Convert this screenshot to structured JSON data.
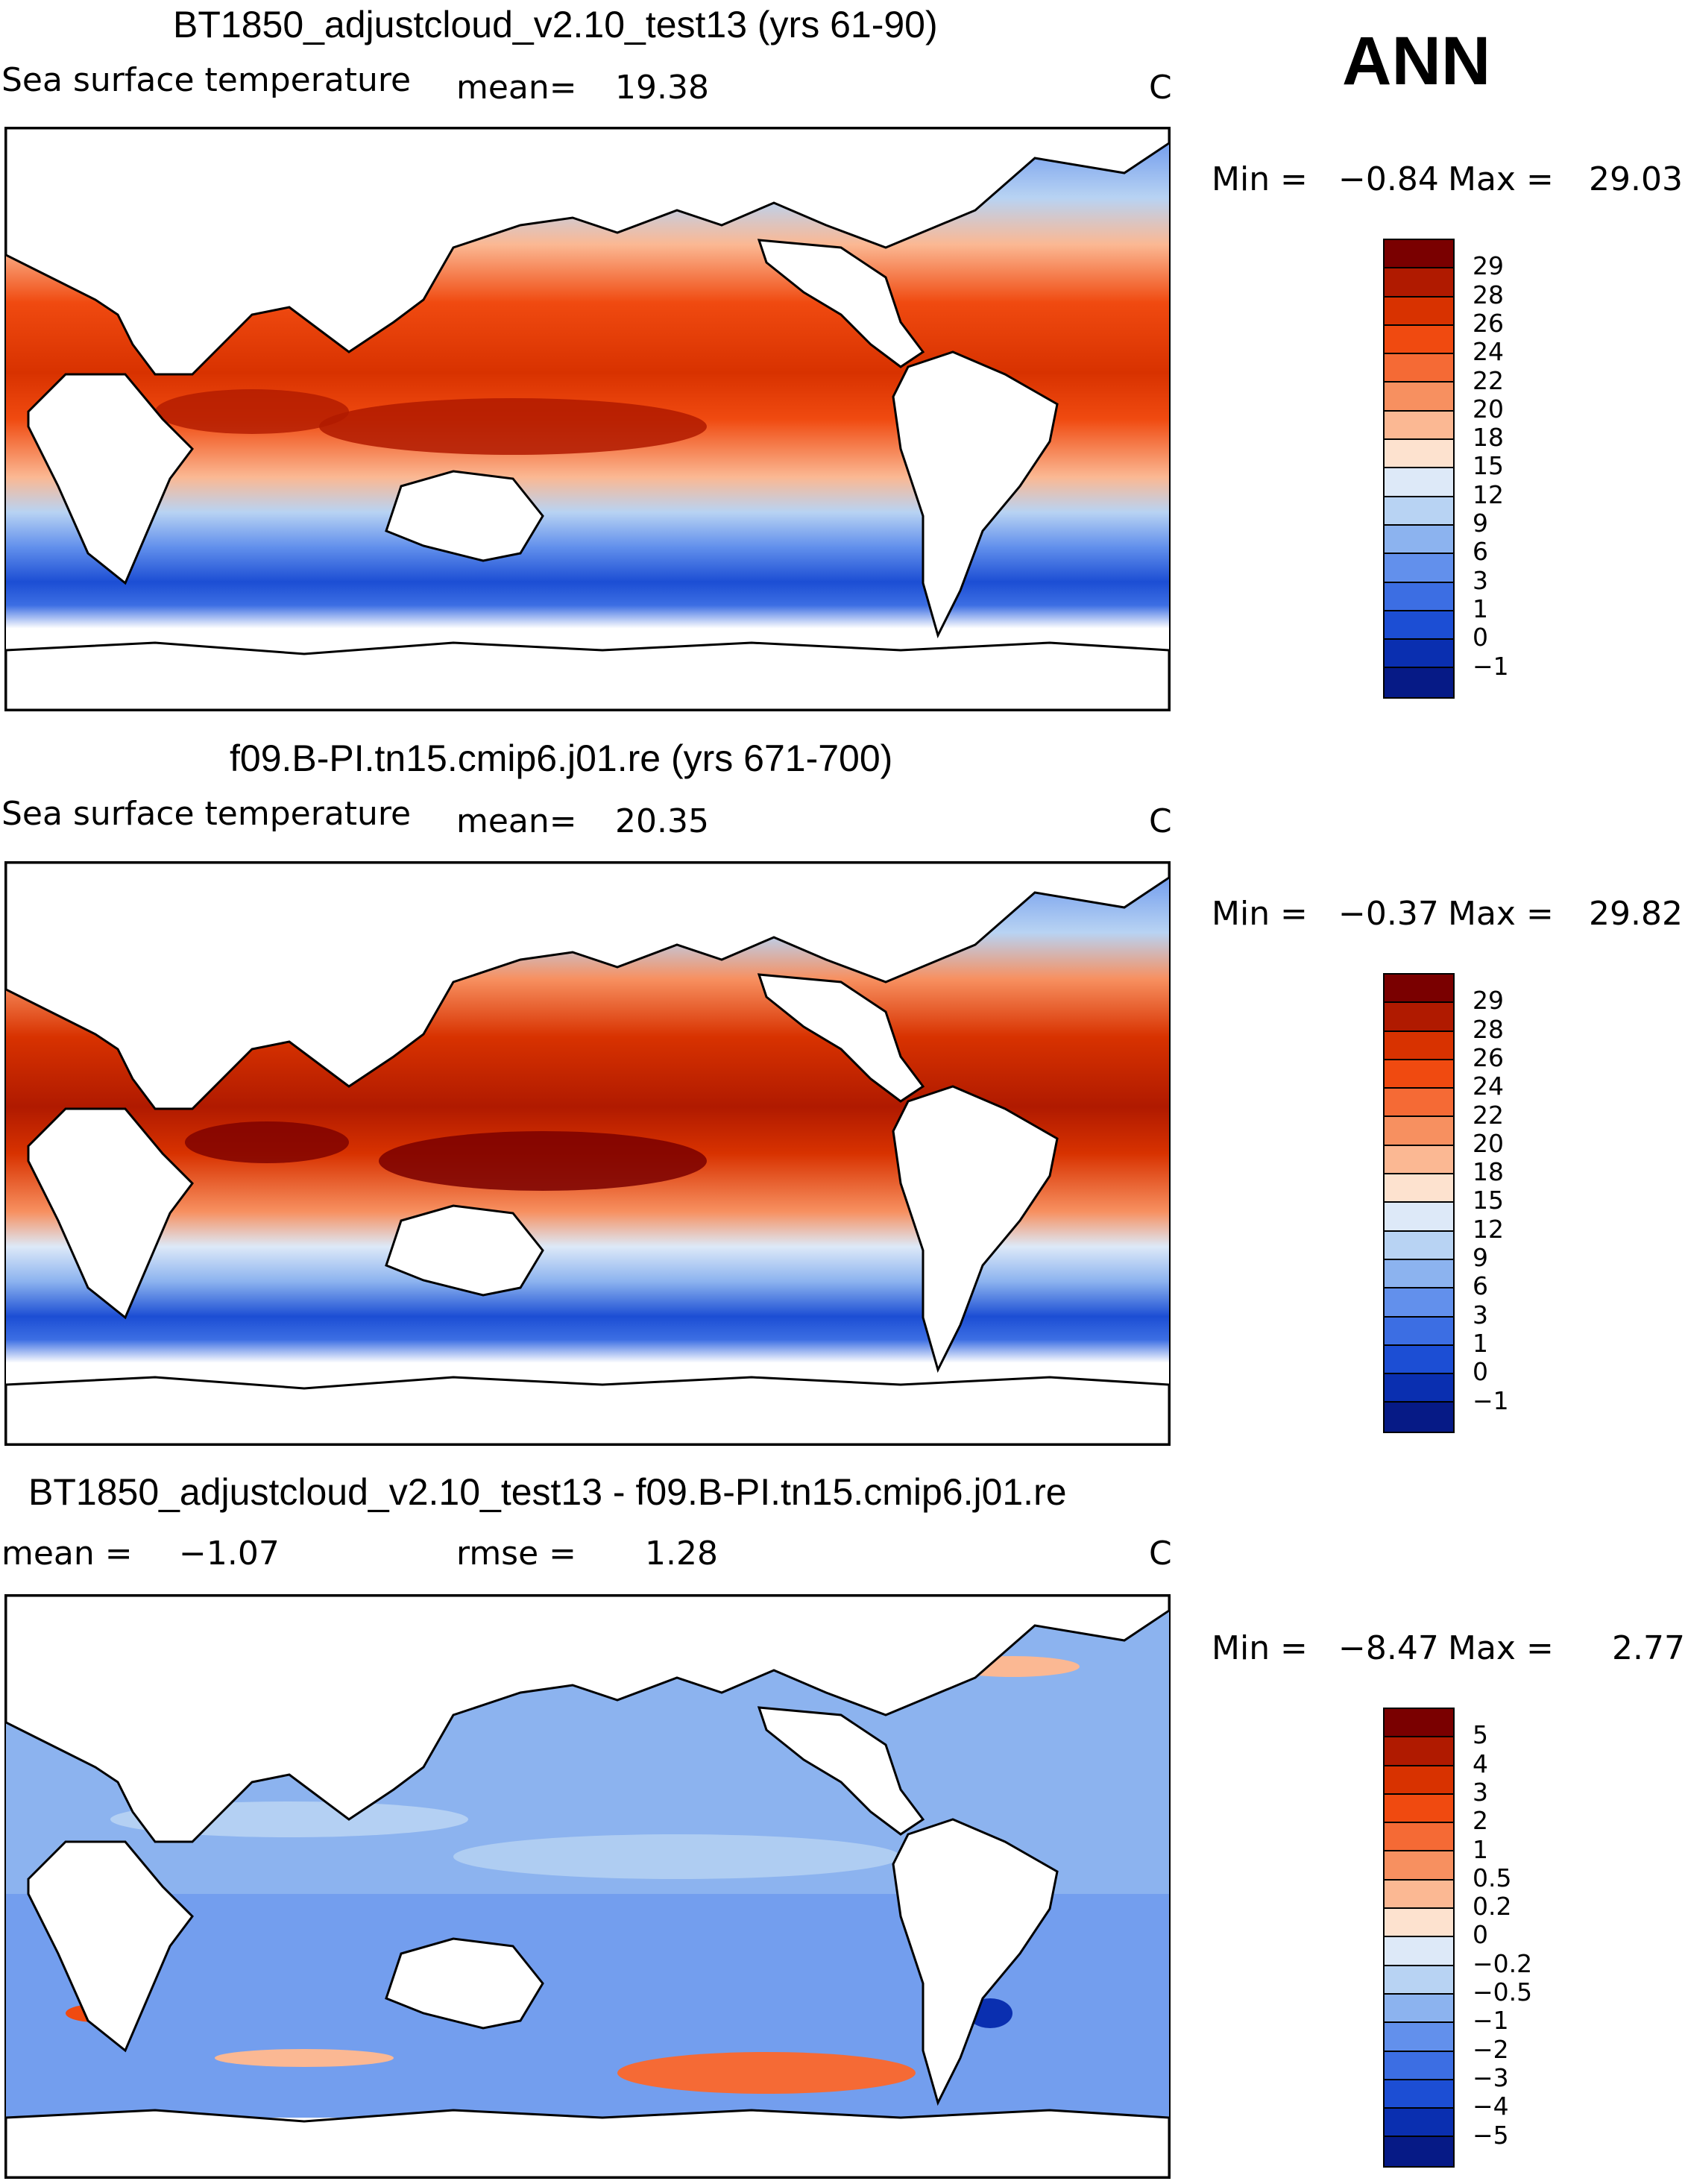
{
  "season": "ANN",
  "units": "C",
  "panels": [
    {
      "title": "BT1850_adjustcloud_v2.10_test13 (yrs 61-90)",
      "variable": "Sea surface temperature",
      "stat_label": "mean=",
      "stat_value": "19.38",
      "units": "C",
      "min_label": "Min =",
      "min_value": "−0.84",
      "max_label": "Max =",
      "max_value": "29.03",
      "colorbar": {
        "labels": [
          "29",
          "28",
          "26",
          "24",
          "22",
          "20",
          "18",
          "15",
          "12",
          "9",
          "6",
          "3",
          "1",
          "0",
          "−1"
        ],
        "colors": [
          "#7a0000",
          "#b01a00",
          "#d83200",
          "#f04a10",
          "#f56a35",
          "#f79060",
          "#fbb893",
          "#fde2cf",
          "#dde9f8",
          "#b8d3f3",
          "#8cb3ef",
          "#6290ec",
          "#3c6ee3",
          "#1c4ed4",
          "#0a2fb0",
          "#061a86"
        ]
      }
    },
    {
      "title": "f09.B-PI.tn15.cmip6.j01.re (yrs 671-700)",
      "variable": "Sea surface temperature",
      "stat_label": "mean=",
      "stat_value": "20.35",
      "units": "C",
      "min_label": "Min =",
      "min_value": "−0.37",
      "max_label": "Max =",
      "max_value": "29.82",
      "colorbar": {
        "labels": [
          "29",
          "28",
          "26",
          "24",
          "22",
          "20",
          "18",
          "15",
          "12",
          "9",
          "6",
          "3",
          "1",
          "0",
          "−1"
        ],
        "colors": [
          "#7a0000",
          "#b01a00",
          "#d83200",
          "#f04a10",
          "#f56a35",
          "#f79060",
          "#fbb893",
          "#fde2cf",
          "#dde9f8",
          "#b8d3f3",
          "#8cb3ef",
          "#6290ec",
          "#3c6ee3",
          "#1c4ed4",
          "#0a2fb0",
          "#061a86"
        ]
      }
    },
    {
      "title": "BT1850_adjustcloud_v2.10_test13 - f09.B-PI.tn15.cmip6.j01.re",
      "mean_label": "mean =",
      "mean_value": "−1.07",
      "rmse_label": "rmse =",
      "rmse_value": "1.28",
      "units": "C",
      "min_label": "Min =",
      "min_value": "−8.47",
      "max_label": "Max =",
      "max_value": "2.77",
      "colorbar": {
        "labels": [
          "5",
          "4",
          "3",
          "2",
          "1",
          "0.5",
          "0.2",
          "0",
          "−0.2",
          "−0.5",
          "−1",
          "−2",
          "−3",
          "−4",
          "−5"
        ],
        "colors": [
          "#7a0000",
          "#b01a00",
          "#d83200",
          "#f04a10",
          "#f56a35",
          "#f79060",
          "#fbb893",
          "#fde2cf",
          "#dde9f8",
          "#b8d3f3",
          "#8cb3ef",
          "#6290ec",
          "#3c6ee3",
          "#1c4ed4",
          "#0a2fb0",
          "#061a86"
        ]
      }
    }
  ]
}
